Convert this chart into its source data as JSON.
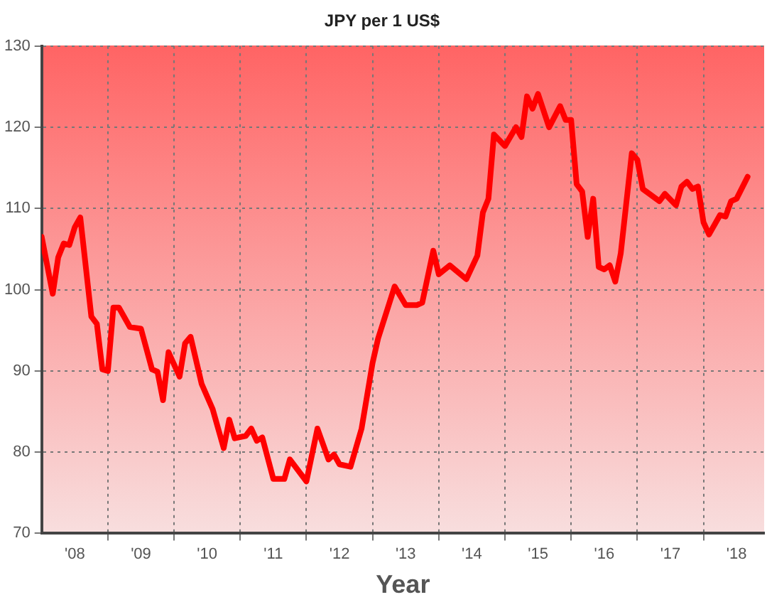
{
  "chart_data": {
    "type": "line",
    "title": "JPY per 1 US$",
    "xlabel": "Year",
    "x": [
      "2008-01",
      "2008-03",
      "2008-04",
      "2008-05",
      "2008-06",
      "2008-07",
      "2008-08",
      "2008-10",
      "2008-11",
      "2008-12",
      "2009-01",
      "2009-02",
      "2009-03",
      "2009-05",
      "2009-07",
      "2009-09",
      "2009-10",
      "2009-11",
      "2009-12",
      "2010-02",
      "2010-03",
      "2010-04",
      "2010-06",
      "2010-08",
      "2010-10",
      "2010-11",
      "2010-12",
      "2011-02",
      "2011-03",
      "2011-04",
      "2011-05",
      "2011-07",
      "2011-09",
      "2011-10",
      "2012-01",
      "2012-03",
      "2012-05",
      "2012-06",
      "2012-07",
      "2012-09",
      "2012-11",
      "2013-01",
      "2013-02",
      "2013-05",
      "2013-07",
      "2013-09",
      "2013-10",
      "2013-12",
      "2014-01",
      "2014-03",
      "2014-06",
      "2014-08",
      "2014-09",
      "2014-10",
      "2014-11",
      "2015-01",
      "2015-03",
      "2015-04",
      "2015-05",
      "2015-06",
      "2015-07",
      "2015-09",
      "2015-11",
      "2015-12",
      "2016-01",
      "2016-02",
      "2016-03",
      "2016-04",
      "2016-05",
      "2016-06",
      "2016-07",
      "2016-08",
      "2016-09",
      "2016-10",
      "2016-12",
      "2017-01",
      "2017-02",
      "2017-05",
      "2017-06",
      "2017-08",
      "2017-09",
      "2017-10",
      "2017-11",
      "2017-12",
      "2018-01",
      "2018-02",
      "2018-04",
      "2018-05",
      "2018-06",
      "2018-07",
      "2018-09"
    ],
    "series": [
      {
        "color": "#ff0000",
        "values": [
          106.5,
          99.5,
          104,
          105.7,
          105.5,
          107.7,
          108.9,
          96.7,
          95.8,
          90.2,
          90,
          97.8,
          97.8,
          95.4,
          95.2,
          90.2,
          89.9,
          86.4,
          92.3,
          89.3,
          93.4,
          94.2,
          88.4,
          85.3,
          80.5,
          84,
          81.7,
          82,
          82.9,
          81.4,
          81.8,
          76.7,
          76.7,
          79.1,
          76.4,
          82.9,
          79.1,
          79.7,
          78.5,
          78.2,
          82.9,
          91,
          94,
          100.4,
          98.1,
          98.1,
          98.4,
          104.8,
          101.9,
          103,
          101.3,
          104.2,
          109.5,
          111.2,
          119.1,
          117.7,
          120,
          118.8,
          123.8,
          122.3,
          124.1,
          120,
          122.6,
          120.9,
          120.9,
          113,
          112.1,
          106.5,
          111.2,
          102.8,
          102.5,
          103,
          101,
          104.5,
          116.8,
          116,
          112.4,
          110.9,
          111.8,
          110.4,
          112.7,
          113.3,
          112.4,
          112.7,
          108.3,
          106.8,
          109.2,
          109,
          110.9,
          111.2,
          113.9
        ]
      }
    ],
    "xlim": [
      "2008-01",
      "2018-12"
    ],
    "xticks": [
      {
        "value": "2008-07",
        "label": "'08"
      },
      {
        "value": "2009-01",
        "label": null
      },
      {
        "value": "2009-07",
        "label": "'09"
      },
      {
        "value": "2010-01",
        "label": null
      },
      {
        "value": "2010-07",
        "label": "'10"
      },
      {
        "value": "2011-01",
        "label": null
      },
      {
        "value": "2011-07",
        "label": "'11"
      },
      {
        "value": "2012-01",
        "label": null
      },
      {
        "value": "2012-07",
        "label": "'12"
      },
      {
        "value": "2013-01",
        "label": null
      },
      {
        "value": "2013-07",
        "label": "'13"
      },
      {
        "value": "2014-01",
        "label": null
      },
      {
        "value": "2014-07",
        "label": "'14"
      },
      {
        "value": "2015-01",
        "label": null
      },
      {
        "value": "2015-07",
        "label": "'15"
      },
      {
        "value": "2016-01",
        "label": null
      },
      {
        "value": "2016-07",
        "label": "'16"
      },
      {
        "value": "2017-01",
        "label": null
      },
      {
        "value": "2017-07",
        "label": "'17"
      },
      {
        "value": "2018-01",
        "label": null
      },
      {
        "value": "2018-07",
        "label": "'18"
      }
    ],
    "ylim": [
      70,
      130
    ],
    "yticks": [
      70,
      80,
      90,
      100,
      110,
      120,
      130
    ],
    "grid": true,
    "legend": false,
    "marker": "none",
    "line_style": "solid"
  }
}
